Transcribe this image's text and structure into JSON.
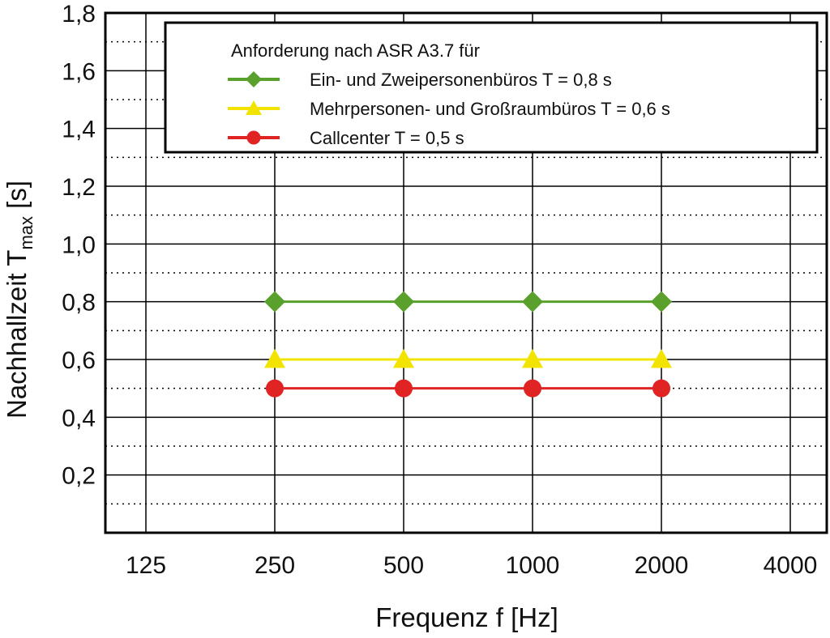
{
  "chart_data": {
    "type": "line",
    "title": "",
    "xlabel": "Frequenz f [Hz]",
    "ylabel": {
      "main": "Nachhallzeit T",
      "sub": "max",
      "unit": " [s]"
    },
    "categories": [
      "125",
      "250",
      "500",
      "1000",
      "2000",
      "4000"
    ],
    "ylim": [
      0,
      1.8
    ],
    "yticks": [
      "0,2",
      "0,4",
      "0,6",
      "0,8",
      "1,0",
      "1,2",
      "1,4",
      "1,6",
      "1,8"
    ],
    "ytick_values": [
      0.2,
      0.4,
      0.6,
      0.8,
      1.0,
      1.2,
      1.4,
      1.6,
      1.8
    ],
    "grid": {
      "major": "solid",
      "minor": "dotted"
    },
    "legend": {
      "title": "Anforderung nach ASR A3.7 für",
      "placement": "top-right"
    },
    "series": [
      {
        "name": "Ein- und Zweipersonenbüros T = 0,8 s",
        "color": "#5aa02c",
        "marker": "diamond",
        "x": [
          "250",
          "500",
          "1000",
          "2000"
        ],
        "values": [
          0.8,
          0.8,
          0.8,
          0.8
        ]
      },
      {
        "name": "Mehrpersonen- und Großraumbüros T = 0,6 s",
        "color": "#f2e400",
        "marker": "triangle",
        "x": [
          "250",
          "500",
          "1000",
          "2000"
        ],
        "values": [
          0.6,
          0.6,
          0.6,
          0.6
        ]
      },
      {
        "name": "Callcenter T = 0,5 s",
        "color": "#e02424",
        "marker": "circle",
        "x": [
          "250",
          "500",
          "1000",
          "2000"
        ],
        "values": [
          0.5,
          0.5,
          0.5,
          0.5
        ]
      }
    ]
  }
}
